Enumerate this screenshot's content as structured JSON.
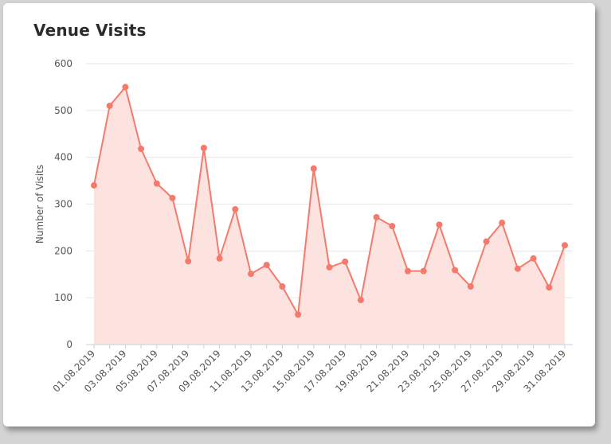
{
  "card": {
    "title": "Venue Visits"
  },
  "colors": {
    "line": "#f47a6c",
    "fill": "#fde3df",
    "grid": "#e6e6e6",
    "axis": "#c8cfe0"
  },
  "chart_data": {
    "type": "area",
    "title": "Venue Visits",
    "xlabel": "",
    "ylabel": "Number of Visits",
    "ylim": [
      0,
      600
    ],
    "yticks": [
      0,
      100,
      200,
      300,
      400,
      500,
      600
    ],
    "grid": true,
    "legend": "none",
    "x": [
      "01.08.2019",
      "02.08.2019",
      "03.08.2019",
      "04.08.2019",
      "05.08.2019",
      "06.08.2019",
      "07.08.2019",
      "08.08.2019",
      "09.08.2019",
      "10.08.2019",
      "11.08.2019",
      "12.08.2019",
      "13.08.2019",
      "14.08.2019",
      "15.08.2019",
      "16.08.2019",
      "17.08.2019",
      "18.08.2019",
      "19.08.2019",
      "20.08.2019",
      "21.08.2019",
      "22.08.2019",
      "23.08.2019",
      "24.08.2019",
      "25.08.2019",
      "26.08.2019",
      "27.08.2019",
      "28.08.2019",
      "29.08.2019",
      "30.08.2019",
      "31.08.2019"
    ],
    "x_tick_labels": [
      "01.08.2019",
      "03.08.2019",
      "05.08.2019",
      "07.08.2019",
      "09.08.2019",
      "11.08.2019",
      "13.08.2019",
      "15.08.2019",
      "17.08.2019",
      "19.08.2019",
      "21.08.2019",
      "23.08.2019",
      "25.08.2019",
      "27.08.2019",
      "29.08.2019",
      "31.08.2019"
    ],
    "series": [
      {
        "values": [
          340,
          510,
          550,
          418,
          344,
          313,
          178,
          420,
          184,
          289,
          151,
          170,
          124,
          64,
          376,
          165,
          177,
          95,
          272,
          253,
          157,
          157,
          256,
          159,
          124,
          220,
          260,
          162,
          184,
          122,
          212
        ]
      }
    ]
  }
}
